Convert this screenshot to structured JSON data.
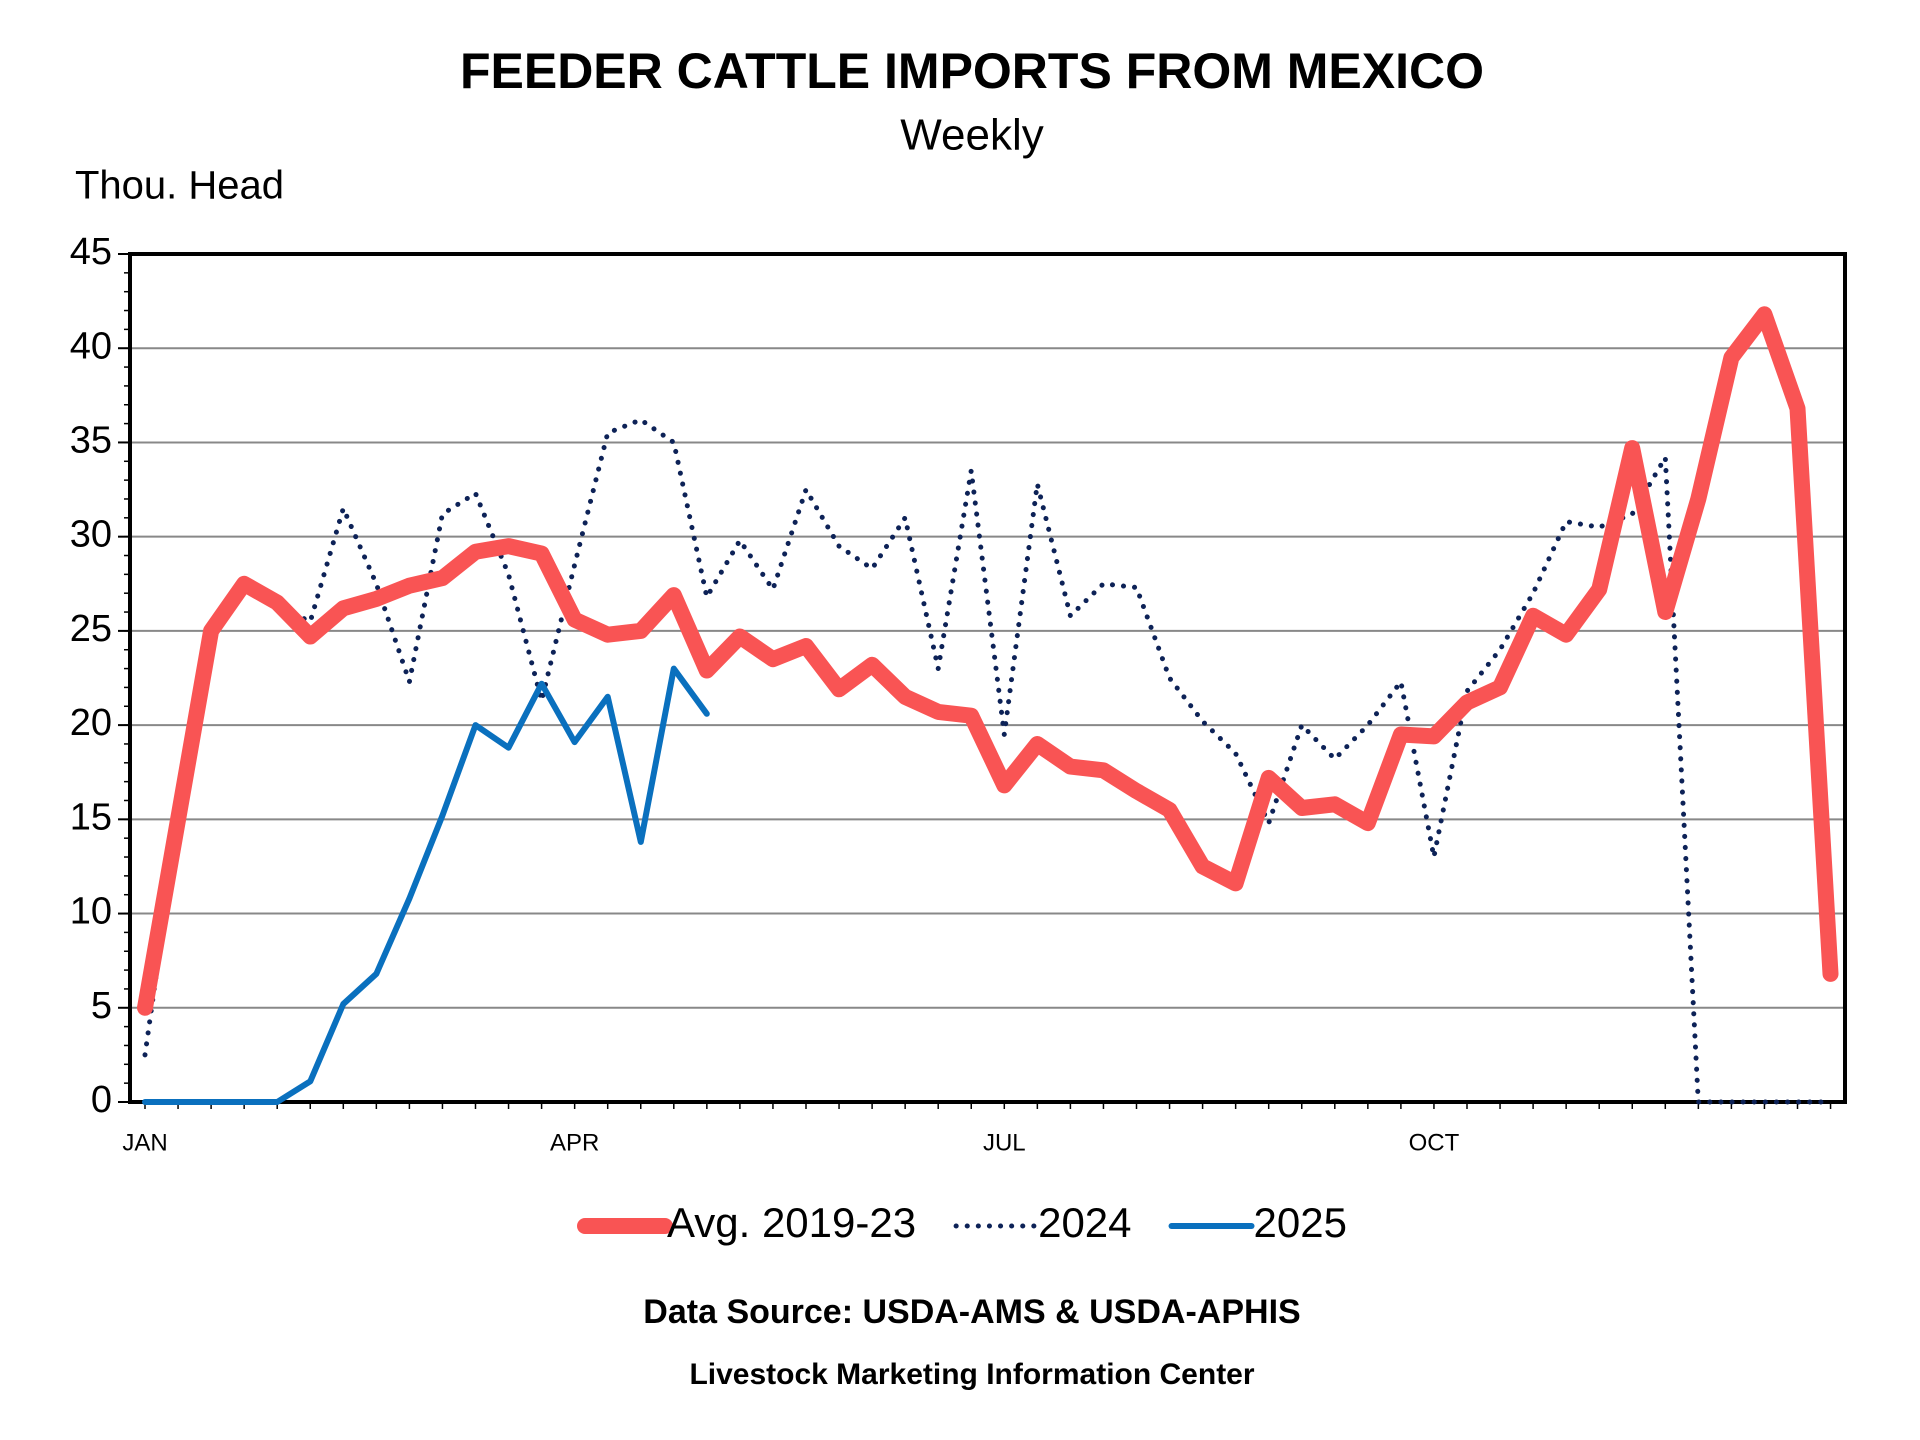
{
  "chart_data": {
    "type": "line",
    "title": "FEEDER CATTLE IMPORTS FROM MEXICO",
    "subtitle": "Weekly",
    "y_label": "Thou. Head",
    "source": "Data Source:  USDA-AMS & USDA-APHIS",
    "credit": "Livestock Marketing Information Center",
    "categories": [
      "JAN",
      null,
      null,
      null,
      null,
      null,
      null,
      null,
      null,
      null,
      null,
      null,
      null,
      "APR",
      null,
      null,
      null,
      null,
      null,
      null,
      null,
      null,
      null,
      null,
      null,
      null,
      "JUL",
      null,
      null,
      null,
      null,
      null,
      null,
      null,
      null,
      null,
      null,
      null,
      null,
      "OCT",
      null,
      null,
      null,
      null,
      null,
      null,
      null,
      null,
      null,
      null,
      null,
      null
    ],
    "series": [
      {
        "name": "Avg. 2019-23",
        "color": "#f95454",
        "style": "solid",
        "width": 16,
        "values": [
          5,
          15,
          25,
          27.5,
          26.5,
          24.7,
          26.2,
          26.7,
          27.4,
          27.8,
          29.2,
          29.5,
          29.1,
          25.6,
          24.8,
          25,
          26.9,
          22.9,
          24.7,
          23.5,
          24.2,
          21.9,
          23.2,
          21.5,
          20.7,
          20.5,
          16.8,
          19,
          17.8,
          17.6,
          16.5,
          15.5,
          12.5,
          11.6,
          17.2,
          15.6,
          15.8,
          14.8,
          19.5,
          19.4,
          21.2,
          22,
          25.8,
          24.8,
          27.2,
          34.7,
          26,
          32,
          39.5,
          41.8,
          36.8,
          6.8
        ]
      },
      {
        "name": "2024",
        "color": "#0d2257",
        "style": "dotted",
        "width": 5,
        "values": [
          2.5,
          15,
          25.5,
          27.8,
          26.3,
          25.5,
          31.5,
          27.5,
          22.3,
          31.2,
          32.3,
          28,
          21.3,
          28.5,
          35.5,
          36.2,
          35,
          26.8,
          29.8,
          27.2,
          32.5,
          29.5,
          28.3,
          31,
          23,
          33.5,
          19.5,
          32.8,
          25.8,
          27.5,
          27.3,
          22.5,
          20.2,
          18.5,
          14.8,
          20,
          18.2,
          20,
          22.3,
          13,
          21.8,
          24,
          27,
          30.8,
          30.5,
          31.2,
          34.2,
          0,
          0,
          0,
          0,
          0
        ]
      },
      {
        "name": "2025",
        "color": "#0a70be",
        "style": "solid",
        "width": 6,
        "values": [
          0,
          0,
          0,
          0,
          0,
          1.1,
          5.2,
          6.8,
          10.8,
          15.2,
          20,
          18.8,
          22.2,
          19.1,
          21.5,
          13.8,
          23,
          20.6,
          null,
          null,
          null,
          null,
          null,
          null,
          null,
          null,
          null,
          null,
          null,
          null,
          null,
          null,
          null,
          null,
          null,
          null,
          null,
          null,
          null,
          null,
          null,
          null,
          null,
          null,
          null,
          null,
          null,
          null,
          null,
          null,
          null,
          null
        ]
      }
    ],
    "ylim": [
      0,
      45
    ],
    "yticks": [
      0,
      5,
      10,
      15,
      20,
      25,
      30,
      35,
      40,
      45
    ],
    "grid": true
  }
}
